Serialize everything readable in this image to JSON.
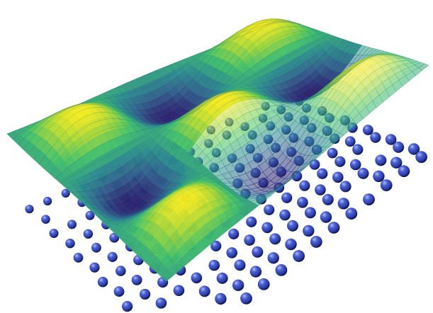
{
  "figure": {
    "kind": "periodic-potential-surface-over-lattice",
    "background_color": "#ffffff",
    "surface_colormap": [
      "#2a1f6e",
      "#2f5c8a",
      "#2a8a8c",
      "#3fbf6a",
      "#9fd63a",
      "#f4ea1f"
    ],
    "surface_opacity_front": 0.55,
    "contour_color": "#1d4e66",
    "atom_color": "#2b3da8",
    "atom_highlight_color": "#9fb0ff",
    "atom_shadow_color": "#0d1447"
  }
}
